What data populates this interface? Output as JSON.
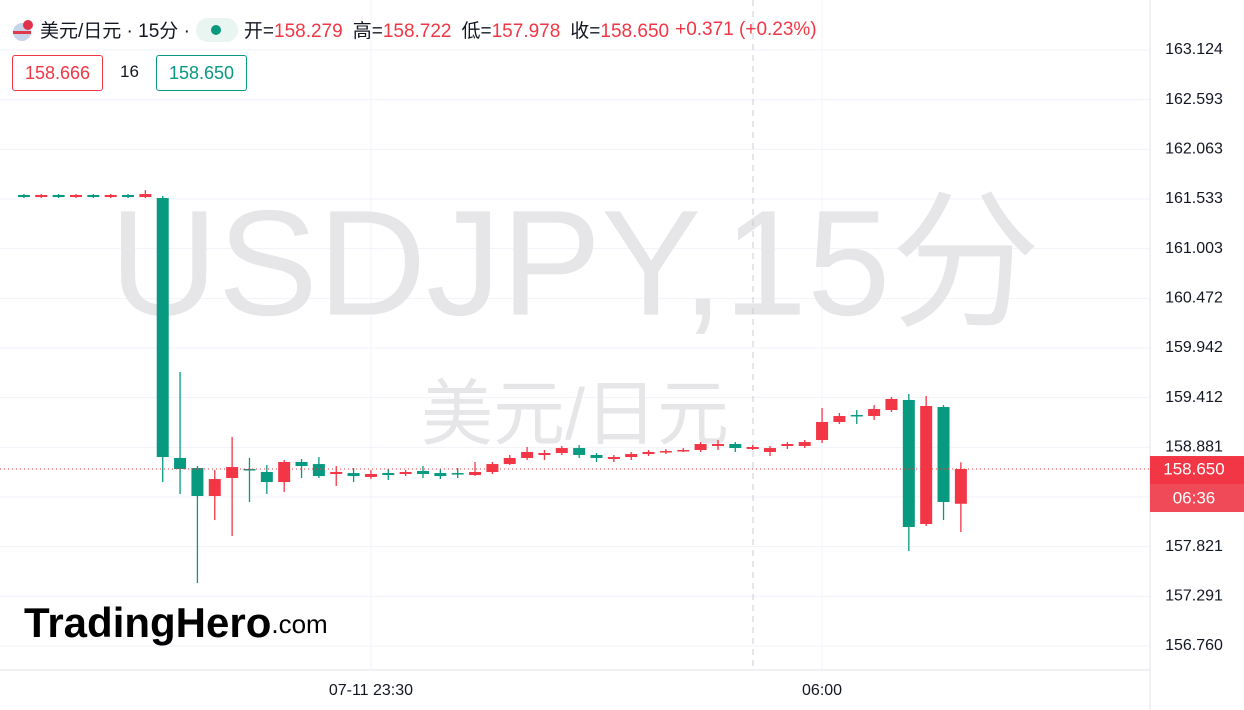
{
  "header": {
    "symbol": "美元/日元 · 15分 ·",
    "fields": [
      {
        "label": "开=",
        "value": "158.279"
      },
      {
        "label": "高=",
        "value": "158.722"
      },
      {
        "label": "低=",
        "value": "157.978"
      },
      {
        "label": "收=",
        "value": "158.650"
      }
    ],
    "change": "+0.371 (+0.23%)",
    "sell": "158.666",
    "spread": "16",
    "buy": "158.650"
  },
  "watermark": {
    "main": "USDJPY,15分",
    "sub": "美元/日元"
  },
  "brand": {
    "name": "TradingHero",
    "suffix": ".com"
  },
  "chart_data": {
    "type": "candlestick",
    "up_color": "#f23645",
    "down_color": "#089981",
    "open": [
      161.576,
      161.554,
      161.576,
      161.554,
      161.576,
      161.554,
      161.576,
      161.554,
      161.544,
      158.768,
      158.661,
      158.362,
      158.554,
      158.65,
      158.618,
      158.511,
      158.725,
      158.703,
      158.597,
      158.607,
      158.565,
      158.607,
      158.597,
      158.629,
      158.607,
      158.607,
      158.586,
      158.618,
      158.703,
      158.768,
      158.8,
      158.821,
      158.874,
      158.8,
      158.757,
      158.778,
      158.81,
      158.832,
      158.842,
      158.853,
      158.896,
      158.917,
      158.864,
      158.832,
      158.896,
      158.896,
      158.96,
      159.152,
      159.227,
      159.216,
      159.28,
      159.387,
      158.063,
      159.312,
      158.279
    ],
    "high": [
      161.586,
      161.586,
      161.586,
      161.586,
      161.586,
      161.586,
      161.586,
      161.629,
      161.565,
      159.686,
      158.682,
      158.639,
      158.992,
      158.768,
      158.693,
      158.746,
      158.757,
      158.778,
      158.682,
      158.661,
      158.639,
      158.65,
      158.639,
      158.682,
      158.65,
      158.661,
      158.725,
      158.725,
      158.8,
      158.885,
      158.853,
      158.896,
      158.906,
      158.821,
      158.8,
      158.832,
      158.853,
      158.864,
      158.874,
      158.938,
      158.96,
      158.938,
      158.906,
      158.896,
      158.938,
      158.96,
      159.301,
      159.248,
      159.28,
      159.333,
      159.419,
      159.451,
      159.43,
      159.333,
      158.722
    ],
    "low": [
      161.544,
      161.544,
      161.544,
      161.544,
      161.544,
      161.544,
      161.544,
      161.544,
      158.511,
      158.383,
      157.432,
      158.105,
      157.934,
      158.298,
      158.383,
      158.404,
      158.554,
      158.554,
      158.469,
      158.511,
      158.543,
      158.533,
      158.575,
      158.554,
      158.543,
      158.554,
      158.575,
      158.597,
      158.693,
      158.746,
      158.746,
      158.8,
      158.768,
      158.725,
      158.725,
      158.746,
      158.789,
      158.81,
      158.832,
      158.832,
      158.853,
      158.832,
      158.853,
      158.789,
      158.864,
      158.874,
      158.928,
      159.131,
      159.131,
      159.173,
      159.259,
      157.774,
      158.041,
      158.105,
      157.978
    ],
    "close": [
      161.554,
      161.576,
      161.554,
      161.576,
      161.554,
      161.576,
      161.554,
      161.586,
      158.778,
      158.65,
      158.362,
      158.543,
      158.671,
      158.639,
      158.511,
      158.725,
      158.682,
      158.575,
      158.618,
      158.575,
      158.597,
      158.586,
      158.618,
      158.597,
      158.575,
      158.597,
      158.618,
      158.703,
      158.768,
      158.832,
      158.821,
      158.874,
      158.8,
      158.768,
      158.778,
      158.81,
      158.832,
      158.842,
      158.853,
      158.917,
      158.917,
      158.874,
      158.885,
      158.874,
      158.917,
      158.938,
      159.152,
      159.216,
      159.216,
      159.291,
      159.398,
      158.031,
      159.323,
      158.298,
      158.65
    ],
    "xlim": [
      -1.378,
      64.9
    ],
    "xticks": [
      {
        "value": 20,
        "label": "07-11 23:30"
      },
      {
        "value": 46,
        "label": "06:00"
      }
    ],
    "ylim": [
      156.504,
      163.658
    ],
    "yticks": [
      163.124,
      162.593,
      162.063,
      161.533,
      161.003,
      160.472,
      159.942,
      159.412,
      158.881,
      {
        "value": 158.351,
        "label": ""
      },
      157.821,
      157.291,
      {
        "value": 156.76,
        "label": "156.760"
      }
    ],
    "grid": true,
    "last_price": {
      "value": 158.65,
      "label": "158.650"
    },
    "countdown": "06:36"
  }
}
